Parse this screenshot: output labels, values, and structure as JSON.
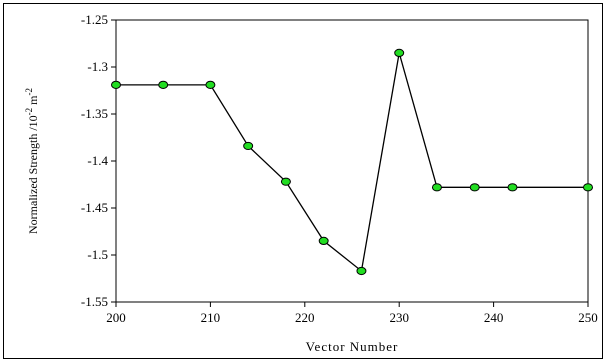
{
  "chart_data": {
    "type": "line",
    "title": "",
    "xlabel": "Vector Number",
    "ylabel": {
      "main": "Normalized Strength /10",
      "exp1": "-2",
      "unit": " m",
      "exp2": "-2"
    },
    "xlim": [
      200,
      250
    ],
    "ylim": [
      -1.55,
      -1.25
    ],
    "xticks": [
      200,
      210,
      220,
      230,
      240,
      250
    ],
    "xtick_labels": [
      "200",
      "210",
      "220",
      "230",
      "240",
      "250"
    ],
    "yticks": [
      -1.25,
      -1.3,
      -1.35,
      -1.4,
      -1.45,
      -1.5,
      -1.55
    ],
    "ytick_labels": [
      "-1.25",
      "-1.3",
      "-1.35",
      "-1.4",
      "-1.45",
      "-1.5",
      "-1.55"
    ],
    "grid": false,
    "legend": "none",
    "series": [
      {
        "x": [
          200,
          205,
          210,
          214,
          218,
          222,
          226,
          230,
          234,
          238,
          242,
          250
        ],
        "y": [
          -1.319,
          -1.319,
          -1.319,
          -1.384,
          -1.422,
          -1.485,
          -1.517,
          -1.285,
          -1.428,
          -1.428,
          -1.428,
          -1.428
        ]
      }
    ],
    "colors": {
      "line": "#000000",
      "marker_fill": "#22dd22",
      "marker_stroke": "#000000"
    }
  }
}
